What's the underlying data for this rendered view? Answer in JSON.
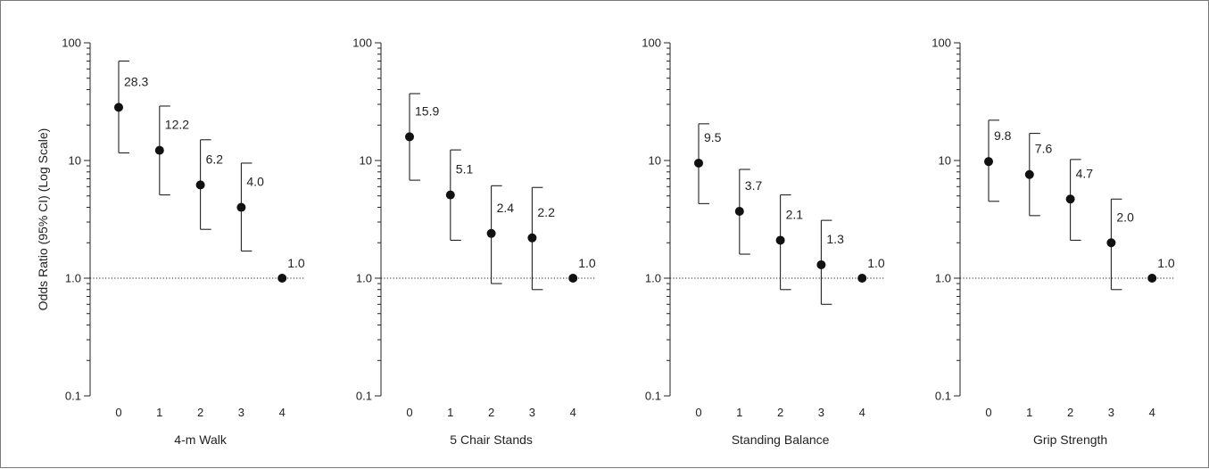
{
  "chart_data": {
    "type": "scatter",
    "y_scale": "log",
    "ylim": [
      0.1,
      100
    ],
    "ylabel": "Odds Ratio (95% CI) (Log Scale)",
    "y_ticks": [
      {
        "value": 100,
        "label": "100"
      },
      {
        "value": 10,
        "label": "10"
      },
      {
        "value": 1,
        "label": "1.0"
      },
      {
        "value": 0.1,
        "label": "0.1"
      }
    ],
    "reference_line": 1.0,
    "x_ticks": [
      0,
      1,
      2,
      3,
      4
    ],
    "panels": [
      {
        "xlabel": "4-m Walk",
        "points": [
          {
            "x": 0,
            "y": 28.3,
            "lower": 11.6,
            "upper": 70,
            "label": "28.3"
          },
          {
            "x": 1,
            "y": 12.2,
            "lower": 5.1,
            "upper": 29,
            "label": "12.2"
          },
          {
            "x": 2,
            "y": 6.2,
            "lower": 2.6,
            "upper": 15,
            "label": "6.2"
          },
          {
            "x": 3,
            "y": 4.0,
            "lower": 1.7,
            "upper": 9.5,
            "label": "4.0"
          },
          {
            "x": 4,
            "y": 1.0,
            "lower": 1.0,
            "upper": 1.0,
            "label": "1.0"
          }
        ]
      },
      {
        "xlabel": "5 Chair Stands",
        "points": [
          {
            "x": 0,
            "y": 15.9,
            "lower": 6.8,
            "upper": 37,
            "label": "15.9"
          },
          {
            "x": 1,
            "y": 5.1,
            "lower": 2.1,
            "upper": 12.3,
            "label": "5.1"
          },
          {
            "x": 2,
            "y": 2.4,
            "lower": 0.9,
            "upper": 6.1,
            "label": "2.4"
          },
          {
            "x": 3,
            "y": 2.2,
            "lower": 0.8,
            "upper": 5.9,
            "label": "2.2"
          },
          {
            "x": 4,
            "y": 1.0,
            "lower": 1.0,
            "upper": 1.0,
            "label": "1.0"
          }
        ]
      },
      {
        "xlabel": "Standing Balance",
        "points": [
          {
            "x": 0,
            "y": 9.5,
            "lower": 4.3,
            "upper": 20.5,
            "label": "9.5"
          },
          {
            "x": 1,
            "y": 3.7,
            "lower": 1.6,
            "upper": 8.4,
            "label": "3.7"
          },
          {
            "x": 2,
            "y": 2.1,
            "lower": 0.8,
            "upper": 5.1,
            "label": "2.1"
          },
          {
            "x": 3,
            "y": 1.3,
            "lower": 0.6,
            "upper": 3.1,
            "label": "1.3"
          },
          {
            "x": 4,
            "y": 1.0,
            "lower": 1.0,
            "upper": 1.0,
            "label": "1.0"
          }
        ]
      },
      {
        "xlabel": "Grip Strength",
        "points": [
          {
            "x": 0,
            "y": 9.8,
            "lower": 4.5,
            "upper": 22,
            "label": "9.8"
          },
          {
            "x": 1,
            "y": 7.6,
            "lower": 3.4,
            "upper": 17,
            "label": "7.6"
          },
          {
            "x": 2,
            "y": 4.7,
            "lower": 2.1,
            "upper": 10.2,
            "label": "4.7"
          },
          {
            "x": 3,
            "y": 2.0,
            "lower": 0.8,
            "upper": 4.7,
            "label": "2.0"
          },
          {
            "x": 4,
            "y": 1.0,
            "lower": 1.0,
            "upper": 1.0,
            "label": "1.0"
          }
        ]
      }
    ]
  }
}
